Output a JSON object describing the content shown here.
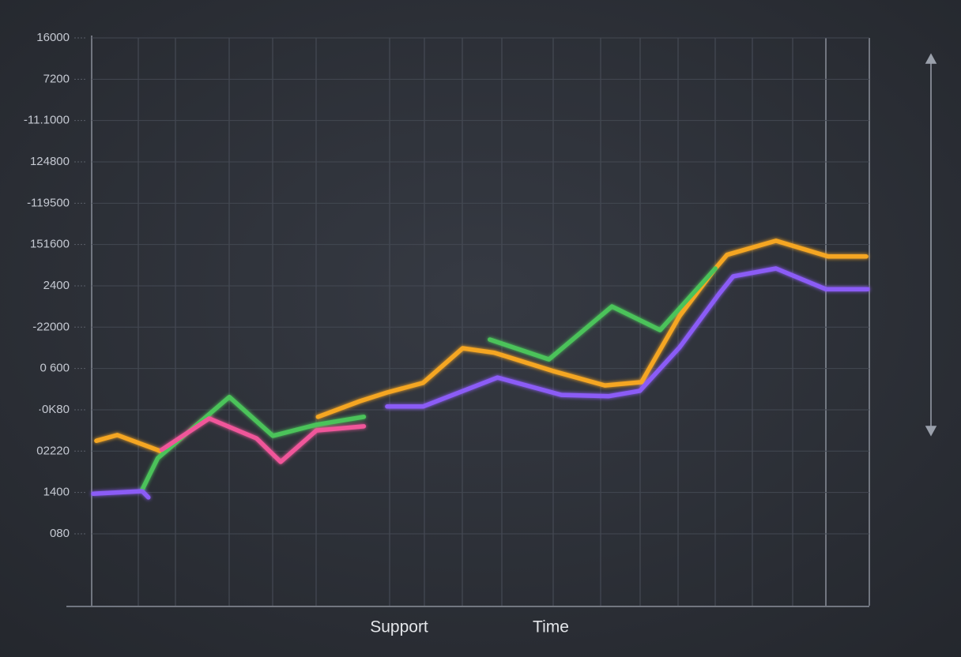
{
  "chart_data": {
    "type": "line",
    "annotations": [
      "Support",
      "Time"
    ],
    "xlim": [
      0,
      100
    ],
    "ylim": [
      -1.74,
      12
    ],
    "yticks": [
      {
        "value": 12,
        "label": "16000"
      },
      {
        "value": 11,
        "label": "7200"
      },
      {
        "value": 10,
        "label": "-11.1000"
      },
      {
        "value": 9,
        "label": "124800"
      },
      {
        "value": 8,
        "label": "-119500"
      },
      {
        "value": 7,
        "label": "151600"
      },
      {
        "value": 6,
        "label": "2400"
      },
      {
        "value": 5,
        "label": "-22000"
      },
      {
        "value": 4,
        "label": "0 600"
      },
      {
        "value": 3,
        "label": "·0K80"
      },
      {
        "value": 2,
        "label": "02220"
      },
      {
        "value": 1,
        "label": "1400"
      },
      {
        "value": 0,
        "label": "080"
      }
    ],
    "grid": true,
    "series": [
      {
        "color": "#f5a623",
        "x": [
          0.6,
          3.3,
          9.0,
          null,
          29.1,
          34.5,
          38.0,
          42.6,
          47.7,
          51.8,
          59.3,
          66.0,
          70.7,
          75.6,
          80.2,
          81.7,
          88.0,
          94.7,
          99.6
        ],
        "values": [
          2.25,
          2.39,
          1.99,
          null,
          2.83,
          3.21,
          3.42,
          3.65,
          4.49,
          4.38,
          3.94,
          3.59,
          3.67,
          5.27,
          6.42,
          6.75,
          7.09,
          6.71,
          6.71
        ]
      },
      {
        "color": "#4cc35a",
        "x": [
          6.5,
          8.5,
          17.7,
          23.3,
          28.9,
          35.0,
          null,
          48.2,
          null,
          51.2,
          58.8,
          66.9,
          73.1,
          80.2
        ],
        "values": [
          1.07,
          1.83,
          3.31,
          2.37,
          2.64,
          2.83,
          null,
          4.41,
          null,
          4.7,
          4.22,
          5.5,
          4.93,
          6.42
        ]
      },
      {
        "color": "#f0569a",
        "x": [
          9.0,
          15.1,
          21.2,
          24.3,
          28.9,
          35.0
        ],
        "values": [
          2.03,
          2.79,
          2.31,
          1.74,
          2.5,
          2.6
        ]
      },
      {
        "color": "#8b5cf6",
        "x": [
          0.2,
          6.5,
          7.3,
          null,
          38.0,
          42.6,
          52.2,
          60.4,
          66.5,
          70.5,
          75.6,
          80.7,
          82.5,
          88.0,
          94.4,
          99.8
        ],
        "values": [
          0.97,
          1.03,
          0.88,
          null,
          3.08,
          3.08,
          3.78,
          3.36,
          3.33,
          3.46,
          4.51,
          5.81,
          6.23,
          6.42,
          5.92,
          5.92
        ]
      }
    ]
  }
}
